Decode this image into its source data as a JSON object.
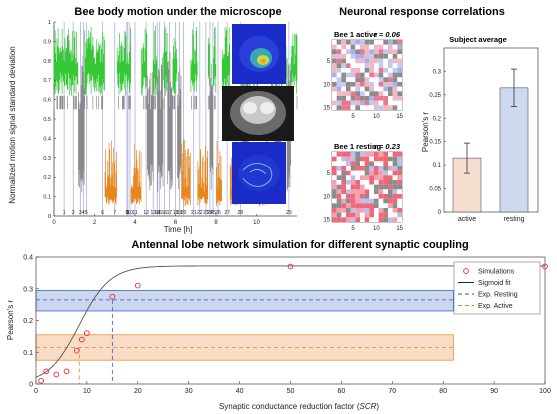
{
  "chart_data": [
    {
      "id": "motion",
      "type": "line",
      "title": "Bee body motion under the microscope",
      "xlabel": "Time [h]",
      "ylabel": "Normalized motion signal standard deviation",
      "xlim": [
        0,
        12
      ],
      "ylim": [
        0,
        1
      ],
      "x_ticks": [
        0,
        2,
        4,
        6,
        8,
        10
      ],
      "y_ticks": [
        0,
        0.1,
        0.2,
        0.3,
        0.4,
        0.5,
        0.6,
        0.7,
        0.8,
        0.9,
        1
      ],
      "marker_labels": [
        "1",
        "2",
        "3",
        "4",
        "5",
        "6",
        "7",
        "8",
        "9",
        "10",
        "11",
        "12",
        "13",
        "14",
        "15",
        "16",
        "17",
        "18",
        "19",
        "20",
        "21",
        "22",
        "23",
        "24",
        "25",
        "26",
        "27",
        "28",
        "29"
      ],
      "marker_times_h": [
        0.5,
        0.95,
        1.3,
        1.45,
        1.6,
        2.4,
        3.0,
        3.6,
        3.65,
        3.75,
        4.0,
        4.55,
        4.9,
        5.1,
        5.2,
        5.45,
        5.7,
        6.0,
        6.2,
        6.4,
        6.9,
        7.2,
        7.5,
        7.7,
        7.85,
        8.1,
        8.55,
        9.2,
        11.6
      ],
      "colors": {
        "active": "#37c837",
        "resting": "#e8861e",
        "gray": "#8a8a8a",
        "markers": "#8a8fd8"
      }
    },
    {
      "id": "active_matrix",
      "type": "heatmap",
      "title": "Bee 1 active",
      "r_label": "r = 0.06",
      "xlim": [
        1,
        15
      ],
      "ylim": [
        1,
        15
      ],
      "tick_labels": [
        "5",
        "10",
        "15"
      ]
    },
    {
      "id": "resting_matrix",
      "type": "heatmap",
      "title": "Bee 1 resting",
      "r_label": "r = 0.23",
      "xlim": [
        1,
        15
      ],
      "ylim": [
        1,
        15
      ],
      "tick_labels": [
        "5",
        "10",
        "15"
      ]
    },
    {
      "id": "subject_average",
      "type": "bar",
      "title": "Subject average",
      "ylabel": "Pearson's r",
      "categories": [
        "active",
        "resting"
      ],
      "values": [
        0.115,
        0.265
      ],
      "errors": [
        0.032,
        0.04
      ],
      "ylim": [
        0,
        0.35
      ],
      "y_ticks": [
        0,
        0.05,
        0.1,
        0.15,
        0.2,
        0.25,
        0.3
      ],
      "bar_colors": [
        "#f5ddd0",
        "#cdd9ee"
      ]
    },
    {
      "id": "simulation",
      "type": "scatter",
      "title": "Antennal lobe network simulation for different synaptic coupling",
      "xlabel": "Synaptic conductance reduction factor",
      "xlabel_symbol": "SCR",
      "ylabel": "Pearson's r",
      "xlim": [
        0,
        100
      ],
      "ylim": [
        0,
        0.4
      ],
      "x_ticks": [
        0,
        10,
        20,
        30,
        40,
        50,
        60,
        70,
        80,
        90,
        100
      ],
      "y_ticks": [
        0,
        0.1,
        0.2,
        0.3,
        0.4
      ],
      "series": [
        {
          "name": "Simulations",
          "x": [
            1,
            2,
            4,
            6,
            8,
            9,
            10,
            15,
            20,
            50,
            100
          ],
          "y": [
            0.01,
            0.04,
            0.03,
            0.04,
            0.105,
            0.14,
            0.16,
            0.275,
            0.31,
            0.37,
            0.37
          ]
        },
        {
          "name": "Sigmoid fit"
        },
        {
          "name": "Exp. Resting",
          "value": 0.265,
          "band": [
            0.23,
            0.295
          ],
          "x_at": 15
        },
        {
          "name": "Exp. Active",
          "value": 0.115,
          "band": [
            0.075,
            0.155
          ],
          "x_at": 8.5
        }
      ],
      "colors": {
        "points": "#e03030",
        "fit": "#555555",
        "resting": "#2a55c8",
        "resting_band": "#cbd7ef",
        "active": "#e8861e",
        "active_band": "#f8dcc6"
      }
    }
  ]
}
